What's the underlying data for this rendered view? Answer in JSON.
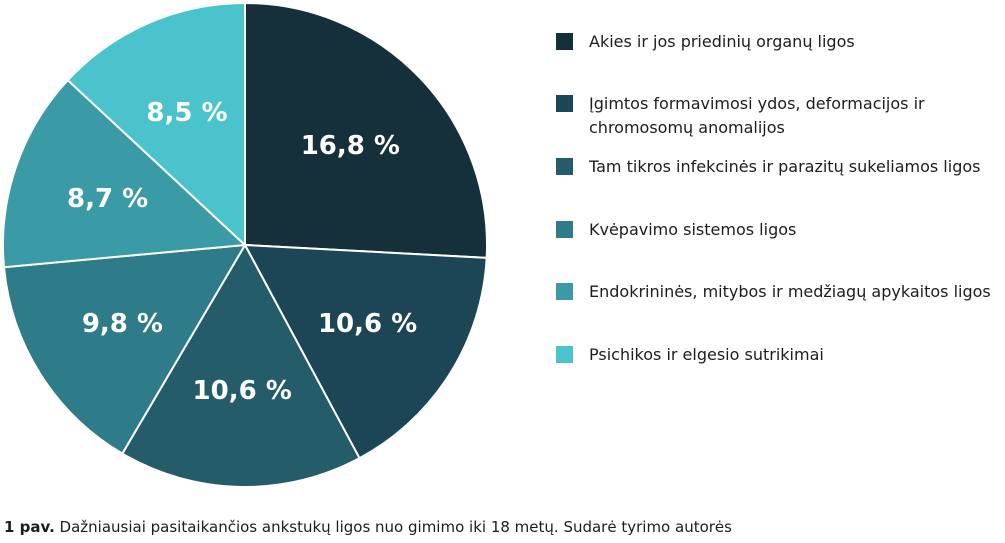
{
  "chart_data": {
    "type": "pie",
    "values": [
      16.8,
      10.6,
      10.6,
      9.8,
      8.7,
      8.5
    ],
    "data_labels": [
      "16,8 %",
      "10,6 %",
      "10,6 %",
      "9,8 %",
      "8,7 %",
      "8,5 %"
    ],
    "categories": [
      "Akies ir jos priedinių organų ligos",
      "Įgimtos formavimosi ydos, deformacijos ir chromosomų anomalijos",
      "Tam tikros infekcinės ir parazitų sukeliamos ligos",
      "Kvėpavimo sistemos ligos",
      "Endokrininės, mitybos ir medžiagų apykaitos ligos",
      "Psichikos ir elgesio sutrikimai"
    ],
    "colors": [
      "#15303a",
      "#1c4655",
      "#245c6a",
      "#2e7b89",
      "#3a9ba7",
      "#4bc3cd"
    ],
    "start_angle": "12 o'clock",
    "direction": "clockwise",
    "legend_position": "right"
  },
  "caption": {
    "label": "1 pav.",
    "text": " Dažniausiai pasitaikančios ankstukų ligos nuo gimimo iki 18 metų. Sudarė tyrimo autorės"
  }
}
